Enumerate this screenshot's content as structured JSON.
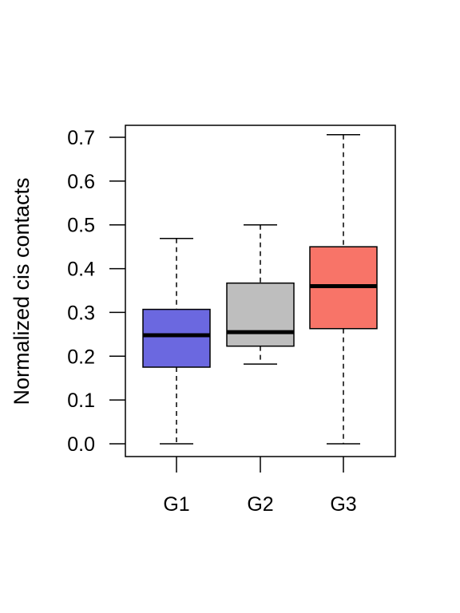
{
  "chart_data": {
    "type": "boxplot",
    "title": "",
    "xlabel": "",
    "ylabel": "Normalized cis contacts",
    "ylim": [
      -0.03,
      0.73
    ],
    "yticks": [
      0.0,
      0.1,
      0.2,
      0.3,
      0.4,
      0.5,
      0.6,
      0.7
    ],
    "ytick_labels": [
      "0.0",
      "0.1",
      "0.2",
      "0.3",
      "0.4",
      "0.5",
      "0.6",
      "0.7"
    ],
    "categories": [
      "G1",
      "G2",
      "G3"
    ],
    "boxes": [
      {
        "group": "G1",
        "whisker_low": 0.0,
        "q1": 0.175,
        "median": 0.248,
        "q3": 0.307,
        "whisker_high": 0.469,
        "color": "#6b68e0"
      },
      {
        "group": "G2",
        "whisker_low": 0.182,
        "q1": 0.223,
        "median": 0.255,
        "q3": 0.367,
        "whisker_high": 0.5,
        "color": "#bebebe"
      },
      {
        "group": "G3",
        "whisker_low": 0.0,
        "q1": 0.263,
        "median": 0.36,
        "q3": 0.45,
        "whisker_high": 0.706,
        "color": "#f87468"
      }
    ],
    "grid": false,
    "legend": "none"
  }
}
